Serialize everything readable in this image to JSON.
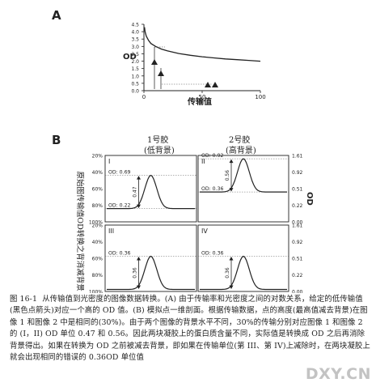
{
  "panel_a": {
    "label": "A",
    "ylabel": "OD",
    "xlabel": "传输值",
    "yticks": [
      "4.5",
      "4.0",
      "3.5",
      "3.0",
      "2.5",
      "2.0",
      "1.5",
      "1.0",
      "0.5",
      "0.0"
    ],
    "xticks": [
      "0",
      "50",
      "100"
    ]
  },
  "panel_b": {
    "label": "B",
    "col1_title": "1号胶",
    "col1_subtitle": "(低背景)",
    "col2_title": "2号胶",
    "col2_subtitle": "(高背景)",
    "row1_label": "原始图传输值",
    "row2_label": "OD转换之背消减背景",
    "left_ticks": [
      "20%",
      "40%",
      "60%",
      "80%",
      "100%"
    ],
    "right_ticks": [
      "1.61",
      "0.92",
      "0.51",
      "0.22",
      "0.00"
    ],
    "right_axis_label": "OD",
    "panels": [
      {
        "roman": "I",
        "od_upper": "OD: 0.69",
        "od_lower": "OD: 0.22",
        "delta": "0.47"
      },
      {
        "roman": "II",
        "od_upper": "OD: 0.92",
        "od_lower": "OD: 0.36",
        "delta": "0.56"
      },
      {
        "roman": "III",
        "od_upper": "OD: 0.36",
        "delta": "0.36"
      },
      {
        "roman": "IV",
        "od_upper": "OD: 0.36",
        "delta": "0.36"
      }
    ]
  },
  "caption": {
    "label": "图 16-1",
    "text": "从传输值到光密度的图像数据转换。(A) 由于传输率和光密度之间的对数关系，给定的低传输值(黑色点箭头)对应一个高的 OD 值。(B) 模拟点一维剖面。根据传输数据，点的高度(最高值减去背景)在图像 1 和图像 2 中是相同的(30%)。由于两个图像的背景水平不同，30%的传输分别对应图像 1 和图像 2 的 (I，II) OD 单位 0.47 和 0.56。因此两块凝胶上的蛋白质含量不同，实际值是转换成 OD 之后再消除背景得出。如果在转换为 OD 之前被减去背景，即如果在传输单位(第 III、第 IV)上减除时，在两块凝胶上就会出现相同的错误的 0.36OD 单位值"
  },
  "watermark": "DXY.CN",
  "chart_data": {
    "type": "line",
    "title": "",
    "xlabel": "传输值",
    "ylabel": "OD",
    "xlim": [
      0,
      100
    ],
    "ylim": [
      0,
      4.5
    ],
    "x": [
      0.5,
      1,
      2,
      4,
      6,
      10,
      15,
      20,
      30,
      40,
      50,
      60,
      70,
      80,
      90,
      100
    ],
    "series": [
      {
        "values": [
          4.3,
          4.0,
          3.7,
          3.4,
          3.2,
          3.0,
          2.82,
          2.7,
          2.52,
          2.4,
          2.3,
          2.22,
          2.15,
          2.1,
          2.05,
          2.0
        ]
      }
    ]
  }
}
